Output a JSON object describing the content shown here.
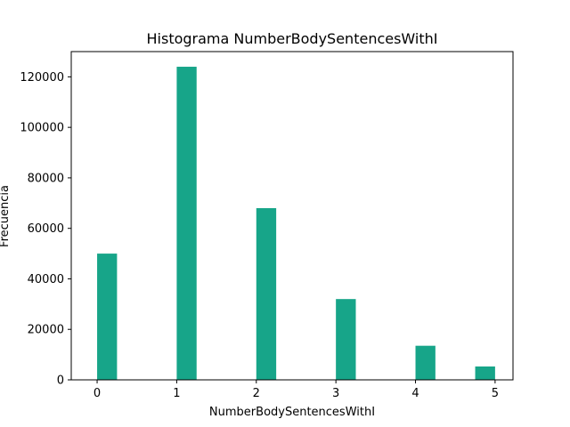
{
  "chart_data": {
    "type": "bar",
    "title": "Histograma NumberBodySentencesWithI",
    "xlabel": "NumberBodySentencesWithI",
    "ylabel": "Frecuencia",
    "bar_color": "#17a589",
    "xlim": [
      -0.325,
      5.225
    ],
    "ylim": [
      0,
      130000
    ],
    "xticks": [
      0,
      1,
      2,
      3,
      4,
      5
    ],
    "yticks": [
      0,
      20000,
      40000,
      60000,
      80000,
      100000,
      120000
    ],
    "bins": [
      {
        "x_start": 0.0,
        "x_end": 0.25,
        "value": 50000
      },
      {
        "x_start": 1.0,
        "x_end": 1.25,
        "value": 124000
      },
      {
        "x_start": 2.0,
        "x_end": 2.25,
        "value": 68000
      },
      {
        "x_start": 3.0,
        "x_end": 3.25,
        "value": 32000
      },
      {
        "x_start": 4.0,
        "x_end": 4.25,
        "value": 13500
      },
      {
        "x_start": 4.75,
        "x_end": 5.0,
        "value": 5300
      }
    ],
    "grid": false,
    "legend": "none"
  }
}
